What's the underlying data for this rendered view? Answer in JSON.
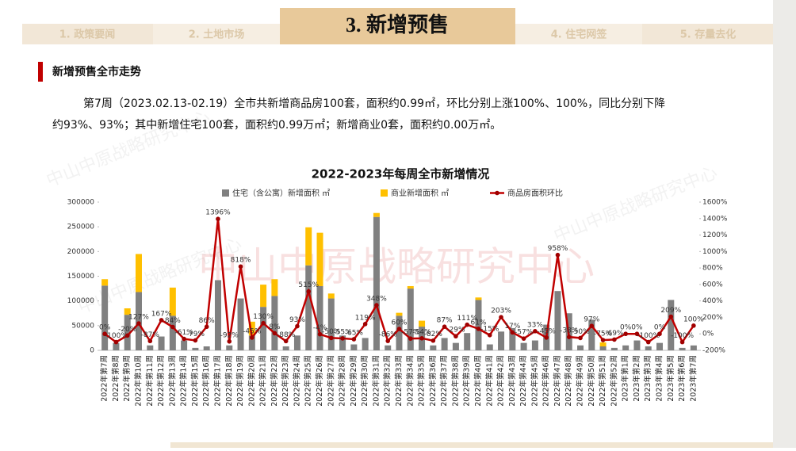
{
  "header": {
    "tabs": [
      "1. 政策要闻",
      "2. 土地市场",
      "3. 新增预售",
      "4. 住宅网签",
      "5. 存量去化"
    ]
  },
  "section_title": "新增预售全市走势",
  "paragraph": [
    "第7周（2023.02.13-02.19）全市共新增商品房100套，面积约0.99㎡，环比分别上涨100%、100%，同比分别下降",
    "约93%、93%；其中新增住宅100套，面积约0.99万㎡；新增商业0套，面积约0.00万㎡。"
  ],
  "watermark": "中山中原战略研究中心",
  "chart_data": {
    "type": "combo",
    "title": "2022-2023年每周全市新增情况",
    "categories": [
      "2022年第7周",
      "2022年第8周",
      "2022年第9周",
      "2022年第10周",
      "2022年第11周",
      "2022年第12周",
      "2022年第13周",
      "2022年第14周",
      "2022年第15周",
      "2022年第16周",
      "2022年第17周",
      "2022年第18周",
      "2022年第19周",
      "2022年第20周",
      "2022年第21周",
      "2022年第22周",
      "2022年第23周",
      "2022年第24周",
      "2022年第25周",
      "2022年第26周",
      "2022年第27周",
      "2022年第28周",
      "2022年第29周",
      "2022年第30周",
      "2022年第31周",
      "2022年第32周",
      "2022年第33周",
      "2022年第34周",
      "2022年第35周",
      "2022年第36周",
      "2022年第37周",
      "2022年第38周",
      "2022年第39周",
      "2022年第40周",
      "2022年第41周",
      "2022年第42周",
      "2022年第43周",
      "2022年第44周",
      "2022年第45周",
      "2022年第46周",
      "2022年第47周",
      "2022年第48周",
      "2022年第49周",
      "2022年第50周",
      "2022年第51周",
      "2022年第52周",
      "2023年第1周",
      "2023年第2周",
      "2023年第3周",
      "2023年第4周",
      "2023年第5周",
      "2023年第6周",
      "2023年第7周"
    ],
    "series": [
      {
        "name": "住宅（含公寓）新增面积 ㎡",
        "type": "bar",
        "color": "#808080",
        "values": [
          131000,
          15000,
          72000,
          118000,
          10000,
          28000,
          70000,
          20000,
          5000,
          8000,
          142000,
          10000,
          105000,
          30000,
          88000,
          110000,
          8000,
          30000,
          172000,
          130000,
          105000,
          30000,
          12000,
          25000,
          270000,
          10000,
          70000,
          125000,
          48000,
          10000,
          25000,
          15000,
          35000,
          102000,
          12000,
          38000,
          45000,
          15000,
          20000,
          52000,
          120000,
          75000,
          10000,
          62000,
          8000,
          5000,
          10000,
          20000,
          8000,
          15000,
          102000,
          5000,
          9900
        ]
      },
      {
        "name": "商业新增面积 ㎡",
        "type": "bar",
        "color": "#ffc000",
        "values": [
          13000,
          0,
          13000,
          77000,
          0,
          0,
          57000,
          0,
          0,
          0,
          0,
          0,
          0,
          28000,
          45000,
          34000,
          0,
          0,
          77000,
          108000,
          10000,
          0,
          0,
          0,
          8000,
          0,
          6000,
          5000,
          12000,
          0,
          0,
          0,
          0,
          5000,
          0,
          0,
          0,
          0,
          0,
          0,
          0,
          0,
          0,
          0,
          8000,
          0,
          0,
          0,
          0,
          0,
          0,
          0,
          0
        ]
      },
      {
        "name": "商品房面积环比",
        "type": "line",
        "axis": "y2",
        "color": "#c00000",
        "values": [
          0,
          -100,
          -20,
          127,
          -87,
          167,
          84,
          -61,
          -79,
          86,
          1396,
          -92,
          818,
          -45,
          130,
          8,
          -88,
          93,
          515,
          -4,
          -50,
          -55,
          -65,
          119,
          348,
          -86,
          60,
          -57,
          -54,
          -82,
          87,
          -29,
          111,
          61,
          -15,
          203,
          17,
          -57,
          33,
          -45,
          958,
          -38,
          -50,
          97,
          -75,
          -69,
          0,
          0,
          -100,
          0,
          209,
          -100,
          100
        ],
        "value_labels": [
          "0%",
          "-100%",
          "-20%",
          "127%",
          "-87%",
          "167%",
          "84%",
          "-61%",
          "-79%",
          "86%",
          "1396%",
          "-92%",
          "818%",
          "-45%",
          "130%",
          "8%",
          "-88%",
          "93%",
          "515%",
          "-4%",
          "-50%",
          "-55%",
          "-65%",
          "119%",
          "348%",
          "-86%",
          "60%",
          "-57%",
          "-54%",
          "-82%",
          "87%",
          "-29%",
          "111%",
          "61%",
          "-15%",
          "203%",
          "17%",
          "-57%",
          "33%",
          "-45%",
          "958%",
          "-38%",
          "-50%",
          "97%",
          "-75%",
          "-69%",
          "0%",
          "0%",
          "-100%",
          "0%",
          "209%",
          "-100%",
          "100%"
        ]
      }
    ],
    "ylim": [
      0,
      300000
    ],
    "yticks": [
      0,
      50000,
      100000,
      150000,
      200000,
      250000,
      300000
    ],
    "y2lim": [
      -200,
      1600
    ],
    "y2ticks": [
      {
        "value": -200,
        "label": "-200%"
      },
      {
        "value": 0,
        "label": "0%"
      },
      {
        "value": 200,
        "label": "200%"
      },
      {
        "value": 400,
        "label": "400%"
      },
      {
        "value": 600,
        "label": "600%"
      },
      {
        "value": 800,
        "label": "800%"
      },
      {
        "value": 1000,
        "label": "1000%"
      },
      {
        "value": 1200,
        "label": "1200%"
      },
      {
        "value": 1400,
        "label": "1400%"
      },
      {
        "value": 1600,
        "label": "1600%"
      }
    ]
  }
}
